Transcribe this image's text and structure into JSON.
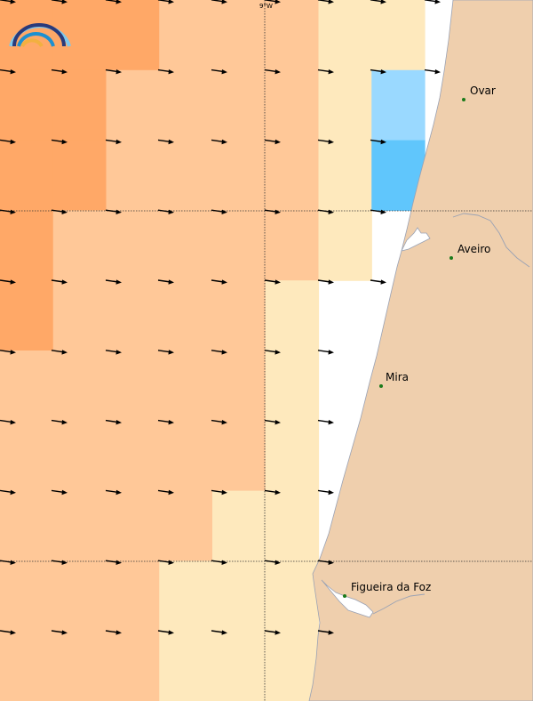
{
  "map": {
    "longitude_label": "9°W",
    "colors": {
      "sea_white": "#ffffff",
      "land": "#efcfad",
      "coast_line": "#9aa2b4",
      "grid_line": "#333333",
      "arrow": "#000000",
      "city_dot": "#1a7a1a",
      "bins": {
        "dark_orange": "#ffa867",
        "orange": "#ffc898",
        "pale_yellow": "#fee9bd",
        "light_blue": "#9ad9ff",
        "blue": "#60c6fc"
      }
    },
    "logo_icon": "rainbow-arcs-logo-icon",
    "cities": [
      {
        "id": "ovar",
        "label": "Ovar"
      },
      {
        "id": "aveiro",
        "label": "Aveiro"
      },
      {
        "id": "mira",
        "label": "Mira"
      },
      {
        "id": "figueira",
        "label": "Figueira da Foz"
      }
    ],
    "wind_direction": "east",
    "grid_columns": 8,
    "grid_rows": 10,
    "cell_bins": [
      [
        "dark_orange",
        "dark_orange",
        "dark_orange",
        "orange",
        "orange",
        "orange",
        "pale_yellow",
        "pale_yellow"
      ],
      [
        "dark_orange",
        "dark_orange",
        "orange",
        "orange",
        "orange",
        "orange",
        "pale_yellow",
        "light_blue"
      ],
      [
        "dark_orange",
        "dark_orange",
        "orange",
        "orange",
        "orange",
        "orange",
        "pale_yellow",
        "blue"
      ],
      [
        "dark_orange",
        "orange",
        "orange",
        "orange",
        "orange",
        "orange",
        "pale_yellow",
        "none"
      ],
      [
        "dark_orange",
        "orange",
        "orange",
        "orange",
        "orange",
        "pale_yellow",
        "none",
        "none"
      ],
      [
        "orange",
        "orange",
        "orange",
        "orange",
        "orange",
        "pale_yellow",
        "none",
        "none"
      ],
      [
        "orange",
        "orange",
        "orange",
        "orange",
        "orange",
        "pale_yellow",
        "none",
        "none"
      ],
      [
        "orange",
        "orange",
        "orange",
        "orange",
        "pale_yellow",
        "pale_yellow",
        "none",
        "none"
      ],
      [
        "orange",
        "orange",
        "orange",
        "pale_yellow",
        "pale_yellow",
        "pale_yellow",
        "none",
        "none"
      ],
      [
        "orange",
        "orange",
        "orange",
        "pale_yellow",
        "pale_yellow",
        "pale_yellow",
        "none",
        "none"
      ]
    ],
    "arrow_rows": [
      [
        true,
        true,
        true,
        true,
        true,
        true,
        true,
        true,
        true
      ],
      [
        true,
        true,
        true,
        true,
        true,
        true,
        true,
        true,
        true
      ],
      [
        true,
        true,
        true,
        true,
        true,
        true,
        true,
        true,
        false
      ],
      [
        true,
        true,
        true,
        true,
        true,
        true,
        true,
        true,
        false
      ],
      [
        true,
        true,
        true,
        true,
        true,
        true,
        true,
        true,
        false
      ],
      [
        true,
        true,
        true,
        true,
        true,
        true,
        true,
        false,
        false
      ],
      [
        true,
        true,
        true,
        true,
        true,
        true,
        true,
        false,
        false
      ],
      [
        true,
        true,
        true,
        true,
        true,
        true,
        true,
        false,
        false
      ],
      [
        true,
        true,
        true,
        true,
        true,
        true,
        true,
        false,
        false
      ],
      [
        true,
        true,
        true,
        true,
        true,
        true,
        true,
        false,
        false
      ]
    ]
  }
}
